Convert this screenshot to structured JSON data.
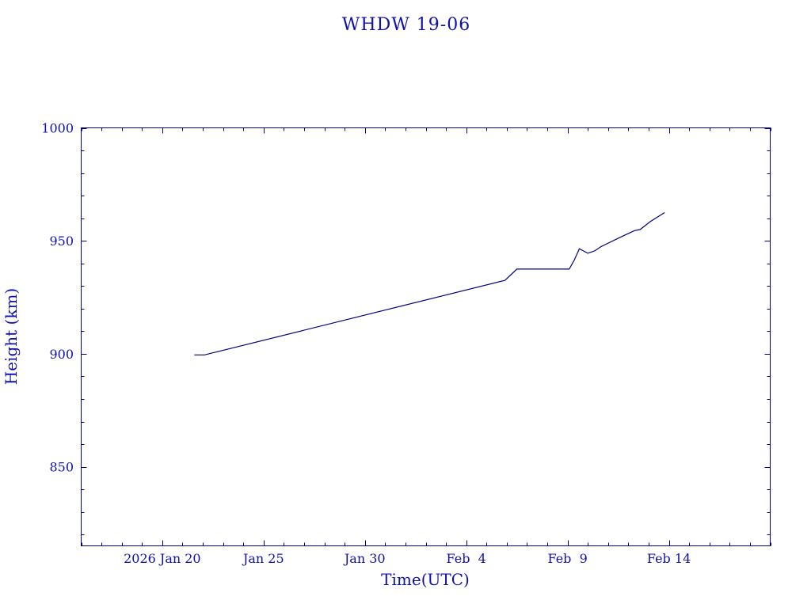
{
  "chart_data": {
    "type": "line",
    "title": "WHDW 19-06",
    "xlabel": "Time(UTC)",
    "ylabel": "Height (km)",
    "xlim": [
      "2026-01-15",
      "2026-02-18"
    ],
    "ylim": [
      815,
      1000
    ],
    "x_ticks": [
      {
        "date": "2026-01-19",
        "label": "2026 Jan 20"
      },
      {
        "date": "2026-01-24",
        "label": "Jan 25"
      },
      {
        "date": "2026-01-29",
        "label": "Jan 30"
      },
      {
        "date": "2026-02-03",
        "label": "Feb  4"
      },
      {
        "date": "2026-02-08",
        "label": "Feb  9"
      },
      {
        "date": "2026-02-13",
        "label": "Feb 14"
      }
    ],
    "y_ticks": [
      850,
      900,
      950,
      1000
    ],
    "grid": false,
    "series": [
      {
        "x": [
          "2026-01-20T14:00",
          "2026-01-21T02:00",
          "2026-02-04T22:00",
          "2026-02-05T12:00",
          "2026-02-08T02:00",
          "2026-02-08T08:00",
          "2026-02-08T14:00",
          "2026-02-09T00:00",
          "2026-02-09T08:00",
          "2026-02-09T16:00",
          "2026-02-10T14:00",
          "2026-02-11T07:00",
          "2026-02-11T14:00",
          "2026-02-12T02:00",
          "2026-02-12T19:00"
        ],
        "y": [
          899.5,
          899.5,
          932.5,
          937.5,
          937.5,
          941.5,
          946.5,
          944.5,
          945.5,
          947.5,
          951.5,
          954.5,
          955.0,
          958.5,
          962.5
        ]
      }
    ]
  }
}
